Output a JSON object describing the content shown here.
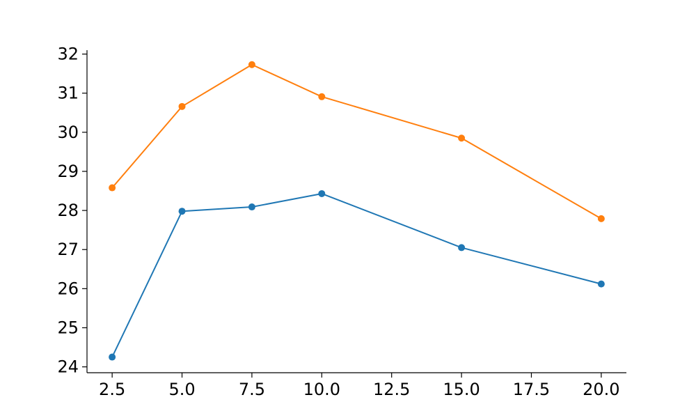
{
  "chart_data": {
    "type": "line",
    "title": "",
    "xlabel": "",
    "ylabel": "",
    "x": [
      2.5,
      5.0,
      7.5,
      10.0,
      15.0,
      20.0
    ],
    "xlim": [
      1.6,
      20.9
    ],
    "ylim": [
      23.85,
      32.1
    ],
    "xticks": [
      "2.5",
      "5.0",
      "7.5",
      "10.0",
      "12.5",
      "15.0",
      "17.5",
      "20.0"
    ],
    "yticks": [
      "24",
      "25",
      "26",
      "27",
      "28",
      "29",
      "30",
      "31",
      "32"
    ],
    "grid": false,
    "legend": "none",
    "series": [
      {
        "color": "#1f77b4",
        "values": [
          24.25,
          27.98,
          28.09,
          28.43,
          27.05,
          26.12
        ]
      },
      {
        "color": "#ff7f0e",
        "values": [
          28.58,
          30.66,
          31.73,
          30.91,
          29.85,
          27.79
        ]
      }
    ]
  }
}
